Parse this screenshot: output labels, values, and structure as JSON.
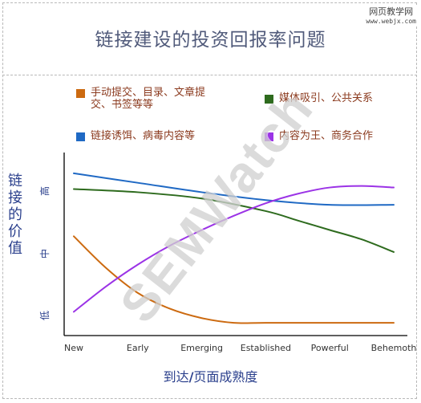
{
  "watermark_site": {
    "cn": "网页教学网",
    "en": "www.webjx.com"
  },
  "brand_watermark": "SEMWatch",
  "chart_data": {
    "type": "line",
    "title": "链接建设的投资回报率问题",
    "xlabel": "到达/页面成熟度",
    "xlabel_parts": [
      "到达",
      "/",
      "页面成熟度"
    ],
    "ylabel": "链接的价值",
    "categories": [
      "New",
      "Early",
      "Emerging",
      "Established",
      "Powerful",
      "Behemoth"
    ],
    "y_ticks": [
      "低",
      "中",
      "高"
    ],
    "ylim": [
      0,
      100
    ],
    "legend": "top",
    "grid": false,
    "series": [
      {
        "name": "手动提交、目录、文章提交、书签等等",
        "color": "#cc6a10",
        "x": [
          0,
          0.5,
          1,
          1.5,
          2,
          2.5,
          3,
          4,
          5
        ],
        "values": [
          58,
          38,
          22,
          12,
          6,
          3,
          3,
          3,
          3
        ]
      },
      {
        "name": "媒体吸引、公共关系",
        "color": "#2e6b1e",
        "x": [
          0,
          1,
          2,
          3,
          3.5,
          4,
          4.5,
          5
        ],
        "values": [
          88,
          86,
          82,
          74,
          68,
          62,
          56,
          48
        ]
      },
      {
        "name": "链接诱饵、病毒内容等",
        "color": "#1f69c4",
        "x": [
          0,
          1,
          2,
          3,
          4,
          5
        ],
        "values": [
          98,
          92,
          86,
          81,
          78,
          78
        ]
      },
      {
        "name": "内容为王、商务合作",
        "color": "#9b33e6",
        "x": [
          0,
          0.5,
          1,
          1.5,
          2,
          2.5,
          3,
          3.5,
          4,
          4.5,
          5
        ],
        "values": [
          10,
          26,
          40,
          52,
          62,
          71,
          79,
          85,
          89,
          90,
          89
        ]
      }
    ]
  }
}
